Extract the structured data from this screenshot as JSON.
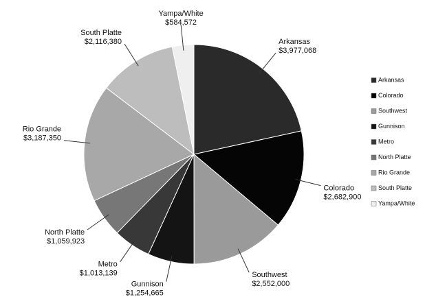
{
  "chart_data": {
    "type": "pie",
    "categories": [
      "Arkansas",
      "Colorado",
      "Southwest",
      "Gunnison",
      "Metro",
      "North Platte",
      "Rio Grande",
      "South Platte",
      "Yampa/White"
    ],
    "values": [
      3977068,
      2682900,
      2552000,
      1254665,
      1013139,
      1059923,
      3187350,
      2116380,
      584572
    ],
    "value_labels": [
      "$3,977,068",
      "$2,682,900",
      "$2,552,000",
      "$1,254,665",
      "$1,013,139",
      "$1,059,923",
      "$3,187,350",
      "$2,116,380",
      "$584,572"
    ],
    "colors": [
      "#2a2a2a",
      "#050505",
      "#9a9a9a",
      "#141414",
      "#383838",
      "#777777",
      "#a8a8a8",
      "#bdbdbd",
      "#efefef"
    ],
    "legend": "right"
  }
}
